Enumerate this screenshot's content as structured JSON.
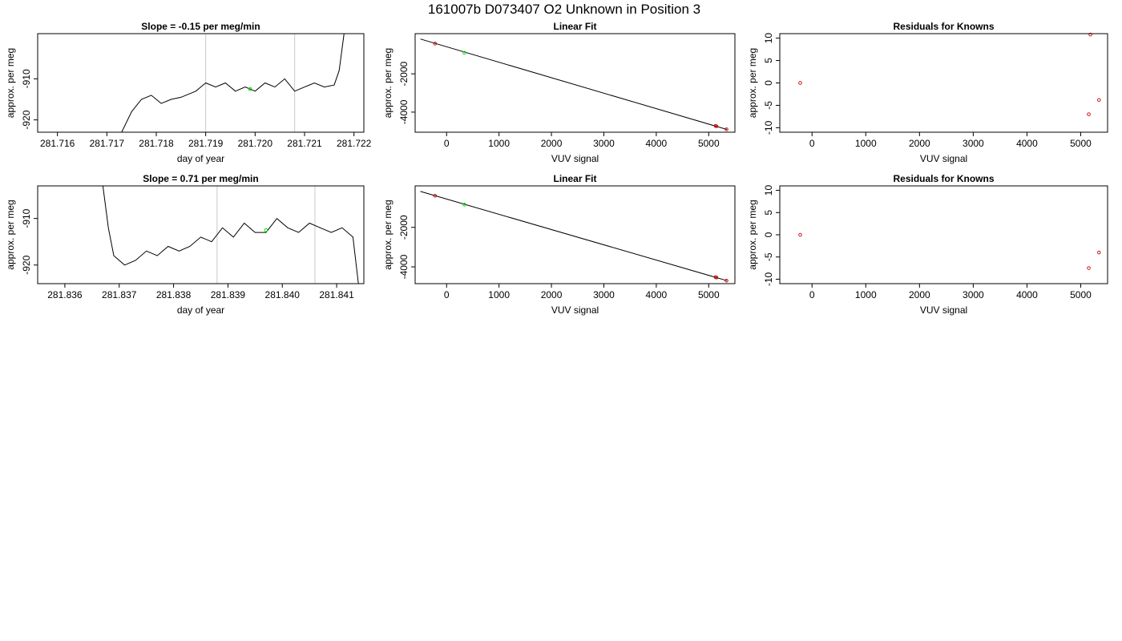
{
  "page_title": "161007b     D073407   O2 Unknown in Position  3",
  "colors": {
    "line": "#000000",
    "gridline": "#c8c8c8",
    "unknown_point": "#00dd00",
    "known_point": "#cc0000"
  },
  "chart_data": [
    {
      "id": "slope-top",
      "type": "line",
      "title": "Slope =  -0.15  per meg/min",
      "xlabel": "day of year",
      "ylabel": "approx. per meg",
      "xlim": [
        281.7156,
        281.7222
      ],
      "ylim": [
        -923,
        -899
      ],
      "xticks": [
        281.716,
        281.717,
        281.718,
        281.719,
        281.72,
        281.721,
        281.722
      ],
      "xtick_labels": [
        "281.716",
        "281.717",
        "281.718",
        "281.719",
        "281.720",
        "281.721",
        "281.722"
      ],
      "yticks": [
        -920,
        -910
      ],
      "ytick_labels": [
        "-920",
        "-910"
      ],
      "vlines": [
        281.719,
        281.7208
      ],
      "marker": {
        "x": 281.7199,
        "y": -912.5
      },
      "series": [
        {
          "x": [
            281.7173,
            281.7175,
            281.7177,
            281.7179,
            281.7181,
            281.7183,
            281.7185,
            281.7188,
            281.719,
            281.7192,
            281.7194,
            281.7196,
            281.7198,
            281.72,
            281.7202,
            281.7204,
            281.7206,
            281.7208,
            281.721,
            281.7212,
            281.7214,
            281.7216,
            281.7217,
            281.7218
          ],
          "y": [
            -923,
            -918,
            -915,
            -914,
            -916,
            -915,
            -914.5,
            -913,
            -911,
            -912,
            -911,
            -913,
            -912,
            -913,
            -911,
            -912,
            -910,
            -913,
            -912,
            -911,
            -912,
            -911.5,
            -908,
            -899
          ]
        }
      ]
    },
    {
      "id": "fit-top",
      "type": "scatter",
      "title": "Linear Fit",
      "xlabel": "VUV signal",
      "ylabel": "approx. per meg",
      "xlim": [
        -600,
        5500
      ],
      "ylim": [
        -5050,
        100
      ],
      "xticks": [
        0,
        1000,
        2000,
        3000,
        4000,
        5000
      ],
      "xtick_labels": [
        "0",
        "1000",
        "2000",
        "3000",
        "4000",
        "5000"
      ],
      "yticks": [
        -4000,
        -2000
      ],
      "ytick_labels": [
        "-4000",
        "-2000"
      ],
      "fit_line": {
        "x": [
          -500,
          5350
        ],
        "y": [
          -180,
          -4910
        ]
      },
      "known_points": {
        "x": [
          -220,
          5130,
          5150,
          5340
        ],
        "y": [
          -420,
          -4720,
          -4740,
          -4900
        ]
      },
      "unknown_points": {
        "x": [
          340
        ],
        "y": [
          -900
        ]
      }
    },
    {
      "id": "resid-top",
      "type": "scatter",
      "title": "Residuals for Knowns",
      "xlabel": "VUV signal",
      "ylabel": "approx. per meg",
      "xlim": [
        -600,
        5500
      ],
      "ylim": [
        -11,
        11
      ],
      "xticks": [
        0,
        1000,
        2000,
        3000,
        4000,
        5000
      ],
      "xtick_labels": [
        "0",
        "1000",
        "2000",
        "3000",
        "4000",
        "5000"
      ],
      "yticks": [
        -10,
        -5,
        0,
        5,
        10
      ],
      "ytick_labels": [
        "-10",
        "-5",
        "0",
        "5",
        "10"
      ],
      "known_points": {
        "x": [
          -220,
          5180,
          5150,
          5340
        ],
        "y": [
          0,
          10.8,
          -7,
          -3.8
        ]
      }
    },
    {
      "id": "slope-bottom",
      "type": "line",
      "title": "Slope =  0.71  per meg/min",
      "xlabel": "day of year",
      "ylabel": "approx. per meg",
      "xlim": [
        281.8355,
        281.8415
      ],
      "ylim": [
        -924,
        -903
      ],
      "xticks": [
        281.836,
        281.837,
        281.838,
        281.839,
        281.84,
        281.841
      ],
      "xtick_labels": [
        "281.836",
        "281.837",
        "281.838",
        "281.839",
        "281.840",
        "281.841"
      ],
      "yticks": [
        -920,
        -910
      ],
      "ytick_labels": [
        "-920",
        "-910"
      ],
      "vlines": [
        281.8388,
        281.8406
      ],
      "marker": {
        "x": 281.8397,
        "y": -912.5
      },
      "series": [
        {
          "x": [
            281.8367,
            281.8368,
            281.8369,
            281.8371,
            281.8373,
            281.8375,
            281.8377,
            281.8379,
            281.8381,
            281.8383,
            281.8385,
            281.8387,
            281.8389,
            281.8391,
            281.8393,
            281.8395,
            281.8397,
            281.8399,
            281.8401,
            281.8403,
            281.8405,
            281.8407,
            281.8409,
            281.8411,
            281.8413,
            281.8414
          ],
          "y": [
            -903,
            -912,
            -918,
            -920,
            -919,
            -917,
            -918,
            -916,
            -917,
            -916,
            -914,
            -915,
            -912,
            -914,
            -911,
            -913,
            -913,
            -910,
            -912,
            -913,
            -911,
            -912,
            -913,
            -912,
            -914,
            -924
          ]
        }
      ]
    },
    {
      "id": "fit-bottom",
      "type": "scatter",
      "title": "Linear Fit",
      "xlabel": "VUV signal",
      "ylabel": "approx. per meg",
      "xlim": [
        -600,
        5500
      ],
      "ylim": [
        -4850,
        100
      ],
      "xticks": [
        0,
        1000,
        2000,
        3000,
        4000,
        5000
      ],
      "xtick_labels": [
        "0",
        "1000",
        "2000",
        "3000",
        "4000",
        "5000"
      ],
      "yticks": [
        -4000,
        -2000
      ],
      "ytick_labels": [
        "-4000",
        "-2000"
      ],
      "fit_line": {
        "x": [
          -500,
          5350
        ],
        "y": [
          -180,
          -4700
        ]
      },
      "known_points": {
        "x": [
          -220,
          5130,
          5150,
          5340
        ],
        "y": [
          -400,
          -4520,
          -4540,
          -4700
        ]
      },
      "unknown_points": {
        "x": [
          340
        ],
        "y": [
          -850
        ]
      }
    },
    {
      "id": "resid-bottom",
      "type": "scatter",
      "title": "Residuals for Knowns",
      "xlabel": "VUV signal",
      "ylabel": "approx. per meg",
      "xlim": [
        -600,
        5500
      ],
      "ylim": [
        -11,
        11
      ],
      "xticks": [
        0,
        1000,
        2000,
        3000,
        4000,
        5000
      ],
      "xtick_labels": [
        "0",
        "1000",
        "2000",
        "3000",
        "4000",
        "5000"
      ],
      "yticks": [
        -10,
        -5,
        0,
        5,
        10
      ],
      "ytick_labels": [
        "-10",
        "-5",
        "0",
        "5",
        "10"
      ],
      "known_points": {
        "x": [
          -220,
          5150,
          5340
        ],
        "y": [
          0,
          -7.5,
          -4
        ]
      }
    }
  ]
}
